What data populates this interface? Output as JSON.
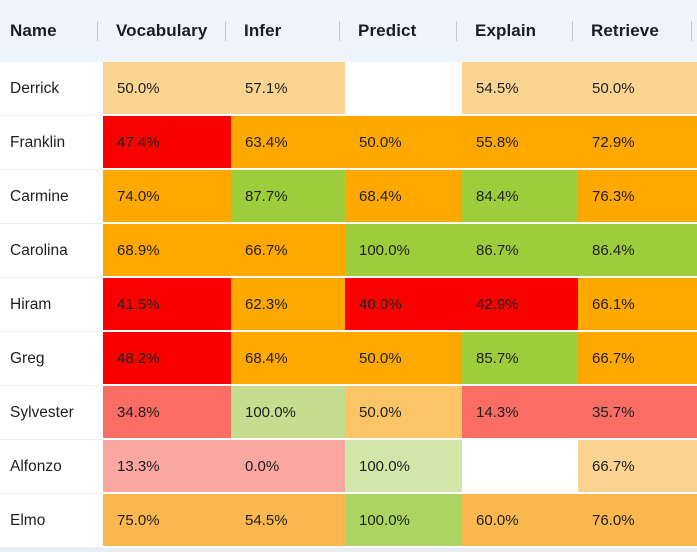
{
  "colors": {
    "header_bg": "#EEF4FB",
    "header_divider": "#C9C9C9",
    "name_separator": "#EDEDED",
    "footer_strip": "#E9EEF6",
    "header_text": "#1C1C28",
    "cell_text": "#1F1F1F",
    "red": "#FC0000",
    "orange": "#FFA800",
    "light_orange": "#FBD492",
    "green": "#9ECD3C",
    "salmon": "#F96D65",
    "pink": "#FAA6A1",
    "muted_green": "#C6DD90",
    "muted_orange": "#FBC567",
    "pale_green": "#D1E6A8",
    "elmo_orange": "#FBB750",
    "elmo_green": "#ABD560"
  },
  "table": {
    "columns": [
      "Name",
      "Vocabulary",
      "Infer",
      "Predict",
      "Explain",
      "Retrieve"
    ],
    "rows": [
      {
        "name": "Derrick",
        "cells": [
          {
            "text": "50.0%",
            "bg": "#FBD492"
          },
          {
            "text": "57.1%",
            "bg": "#FBD492"
          },
          {
            "text": "",
            "bg": "#FFFFFF"
          },
          {
            "text": "54.5%",
            "bg": "#FBD492"
          },
          {
            "text": "50.0%",
            "bg": "#FBD492"
          }
        ]
      },
      {
        "name": "Franklin",
        "cells": [
          {
            "text": "47.4%",
            "bg": "#FC0000"
          },
          {
            "text": "63.4%",
            "bg": "#FFA800"
          },
          {
            "text": "50.0%",
            "bg": "#FFA800"
          },
          {
            "text": "55.8%",
            "bg": "#FFA800"
          },
          {
            "text": "72.9%",
            "bg": "#FFA800"
          }
        ]
      },
      {
        "name": "Carmine",
        "cells": [
          {
            "text": "74.0%",
            "bg": "#FFA800"
          },
          {
            "text": "87.7%",
            "bg": "#9ECD3C"
          },
          {
            "text": "68.4%",
            "bg": "#FFA800"
          },
          {
            "text": "84.4%",
            "bg": "#9ECD3C"
          },
          {
            "text": "76.3%",
            "bg": "#FFA800"
          }
        ]
      },
      {
        "name": "Carolina",
        "cells": [
          {
            "text": "68.9%",
            "bg": "#FFA800"
          },
          {
            "text": "66.7%",
            "bg": "#FFA800"
          },
          {
            "text": "100.0%",
            "bg": "#9ECD3C"
          },
          {
            "text": "86.7%",
            "bg": "#9ECD3C"
          },
          {
            "text": "86.4%",
            "bg": "#9ECD3C"
          }
        ]
      },
      {
        "name": "Hiram",
        "cells": [
          {
            "text": "41.5%",
            "bg": "#FC0000"
          },
          {
            "text": "62.3%",
            "bg": "#FFA800"
          },
          {
            "text": "40.0%",
            "bg": "#FC0000"
          },
          {
            "text": "42.9%",
            "bg": "#FC0000"
          },
          {
            "text": "66.1%",
            "bg": "#FFA800"
          }
        ]
      },
      {
        "name": "Greg",
        "cells": [
          {
            "text": "48.2%",
            "bg": "#FC0000"
          },
          {
            "text": "68.4%",
            "bg": "#FFA800"
          },
          {
            "text": "50.0%",
            "bg": "#FFA800"
          },
          {
            "text": "85.7%",
            "bg": "#9ECD3C"
          },
          {
            "text": "66.7%",
            "bg": "#FFA800"
          }
        ]
      },
      {
        "name": "Sylvester",
        "cells": [
          {
            "text": "34.8%",
            "bg": "#F96D65"
          },
          {
            "text": "100.0%",
            "bg": "#C6DD90"
          },
          {
            "text": "50.0%",
            "bg": "#FBC567"
          },
          {
            "text": "14.3%",
            "bg": "#F96D65"
          },
          {
            "text": "35.7%",
            "bg": "#F96D65"
          }
        ]
      },
      {
        "name": "Alfonzo",
        "cells": [
          {
            "text": "13.3%",
            "bg": "#FAA6A1"
          },
          {
            "text": "0.0%",
            "bg": "#FAA6A1"
          },
          {
            "text": "100.0%",
            "bg": "#D1E6A8"
          },
          {
            "text": "",
            "bg": "#FFFFFF"
          },
          {
            "text": "66.7%",
            "bg": "#FBD492"
          }
        ]
      },
      {
        "name": "Elmo",
        "cells": [
          {
            "text": "75.0%",
            "bg": "#FBB750"
          },
          {
            "text": "54.5%",
            "bg": "#FBB750"
          },
          {
            "text": "100.0%",
            "bg": "#ABD560"
          },
          {
            "text": "60.0%",
            "bg": "#FBB750"
          },
          {
            "text": "76.0%",
            "bg": "#FBB750"
          }
        ]
      }
    ]
  }
}
